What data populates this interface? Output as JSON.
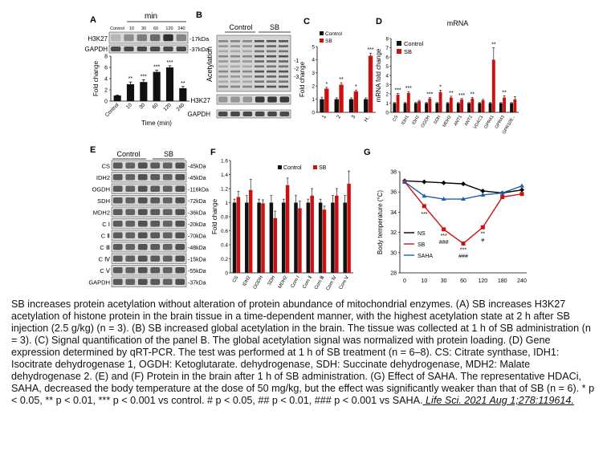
{
  "panels": {
    "A": {
      "letter": "A",
      "time_header": "min",
      "lane_labels": [
        "Control",
        "10",
        "30",
        "60",
        "120",
        "240"
      ],
      "blot_labels": [
        "H3K27",
        "GAPDH"
      ],
      "kda": [
        "17kDa",
        "37kDa"
      ],
      "chart_data": {
        "type": "bar",
        "categories": [
          "Control",
          "10",
          "30",
          "60",
          "120",
          "240"
        ],
        "values": [
          1,
          3.0,
          3.4,
          5.2,
          6.0,
          2.3
        ],
        "errors": [
          0.1,
          0.4,
          0.4,
          0.3,
          0.3,
          0.3
        ],
        "sig": [
          "",
          "**",
          "***",
          "***",
          "***",
          "**"
        ],
        "ylabel": "Fold change",
        "xlabel": "Time (min)",
        "ylim": [
          0,
          8
        ],
        "yticks": [
          "0",
          "2",
          "4",
          "6",
          "8"
        ]
      }
    },
    "B": {
      "letter": "B",
      "groups": [
        "Control",
        "SB"
      ],
      "ylabel": "Acetylation",
      "band_labels": [
        "1",
        "2",
        "3"
      ],
      "blot_labels": [
        "H3K27",
        "GAPDH"
      ]
    },
    "C": {
      "letter": "C",
      "chart_data": {
        "type": "bar",
        "categories": [
          "1",
          "2",
          "3",
          "H.."
        ],
        "series": [
          {
            "name": "Control",
            "values": [
              1,
              1,
              1,
              1
            ],
            "errors": [
              0.15,
              0.1,
              0.1,
              0.1
            ]
          },
          {
            "name": "SB",
            "values": [
              1.8,
              2.1,
              1.6,
              4.3
            ],
            "errors": [
              0.1,
              0.15,
              0.1,
              0.2
            ]
          }
        ],
        "sig": [
          "*",
          "**",
          "*",
          "***"
        ],
        "ylabel": "Fold change",
        "ylim": [
          0,
          5
        ],
        "yticks": [
          "0",
          "1",
          "2",
          "3",
          "4",
          "5"
        ]
      }
    },
    "D": {
      "letter": "D",
      "chart_data": {
        "type": "bar",
        "title": "mRNA",
        "categories": [
          "CS",
          "IDH1",
          "IDH2",
          "OGDH",
          "SDH",
          "MDH2",
          "ANT1",
          "ANT2",
          "VDAC1",
          "GPR41",
          "GPR43",
          "GPR109..."
        ],
        "series": [
          {
            "name": "Control",
            "values": [
              1,
              1,
              1,
              1,
              1,
              1,
              1,
              1,
              1,
              1,
              1,
              1
            ]
          },
          {
            "name": "SB",
            "values": [
              1.9,
              2.1,
              1.2,
              1.5,
              2.2,
              1.6,
              1.4,
              1.5,
              1.3,
              5.7,
              1.6,
              1.4
            ]
          }
        ],
        "errors": [
          0.15,
          0.15,
          0.1,
          0.1,
          0.2,
          0.15,
          0.1,
          0.1,
          0.1,
          1.3,
          0.2,
          0.3
        ],
        "sig": [
          "***",
          "***",
          "",
          "***",
          "*",
          "**",
          "***",
          "**",
          "",
          "**",
          "**",
          ""
        ],
        "ylabel": "mRNA fold change",
        "ylim": [
          0,
          8
        ],
        "yticks": [
          "0",
          "1",
          "2",
          "3",
          "4",
          "5",
          "6",
          "7",
          "8"
        ]
      }
    },
    "E": {
      "letter": "E",
      "groups": [
        "Control",
        "SB"
      ],
      "rows": [
        {
          "label": "CS",
          "kda": "45kDa"
        },
        {
          "label": "IDH2",
          "kda": "45kDa"
        },
        {
          "label": "OGDH",
          "kda": "116kDa"
        },
        {
          "label": "SDH",
          "kda": "72kDa"
        },
        {
          "label": "MDH2",
          "kda": "36kDa"
        },
        {
          "label": "C Ⅰ",
          "kda": "20kDa"
        },
        {
          "label": "C Ⅱ",
          "kda": "70kDa"
        },
        {
          "label": "C Ⅲ",
          "kda": "48kDa"
        },
        {
          "label": "C Ⅳ",
          "kda": "15kDa"
        },
        {
          "label": "C Ⅴ",
          "kda": "55kDa"
        },
        {
          "label": "GAPDH",
          "kda": "37kDa"
        }
      ]
    },
    "F": {
      "letter": "F",
      "chart_data": {
        "type": "bar",
        "categories": [
          "CS",
          "IDH2",
          "OGDH",
          "SDH",
          "MDH2",
          "Com Ⅰ",
          "Com Ⅱ",
          "Com Ⅲ",
          "Com Ⅳ",
          "Com Ⅴ"
        ],
        "series": [
          {
            "name": "Control",
            "values": [
              1,
              1,
              1,
              1,
              1,
              1,
              1,
              1,
              1,
              1
            ],
            "errors": [
              0.05,
              0.1,
              0.05,
              0.1,
              0.05,
              0.1,
              0.05,
              0.05,
              0.1,
              0.1
            ]
          },
          {
            "name": "SB",
            "values": [
              1.08,
              1.18,
              0.99,
              0.78,
              1.25,
              0.92,
              1.1,
              0.9,
              1.1,
              1.27
            ],
            "errors": [
              0.08,
              0.15,
              0.05,
              0.1,
              0.1,
              0.1,
              0.1,
              0.05,
              0.1,
              0.18
            ]
          }
        ],
        "ylabel": "Fold change",
        "ylim": [
          0,
          1.6
        ],
        "yticks": [
          "0",
          "0.2",
          "0.4",
          "0.6",
          "0.8",
          "1",
          "1.2",
          "1.4",
          "1.6"
        ]
      }
    },
    "G": {
      "letter": "G",
      "chart_data": {
        "type": "line",
        "x": [
          0,
          10,
          30,
          60,
          120,
          180,
          240
        ],
        "series": [
          {
            "name": "NS",
            "color": "#000000",
            "values": [
              37.1,
              37.0,
              36.9,
              36.8,
              36.1,
              35.9,
              36.2
            ]
          },
          {
            "name": "SB",
            "color": "#cc1111",
            "values": [
              37.0,
              34.6,
              32.3,
              30.9,
              32.5,
              35.5,
              35.8
            ]
          },
          {
            "name": "SAHA",
            "color": "#1f5fb0",
            "values": [
              37.0,
              35.6,
              35.3,
              35.3,
              35.7,
              35.9,
              36.6
            ]
          }
        ],
        "ylabel": "Body temperature (°C)",
        "ylim": [
          28,
          38
        ],
        "yticks": [
          "28",
          "30",
          "32",
          "34",
          "36",
          "38"
        ],
        "xticks": [
          "0",
          "10",
          "30",
          "60",
          "120",
          "180",
          "240"
        ],
        "sig_upper": [
          "",
          "***",
          "***",
          "***",
          "**",
          "",
          ""
        ],
        "sig_lower": [
          "",
          "",
          "###",
          "###",
          "#",
          "",
          ""
        ]
      }
    }
  },
  "caption": {
    "text": "SB increases protein acetylation without alteration of protein abundance of mitochondrial enzymes. (A) SB increases H3K27 acetylation of histone protein in the brain tissue in a time-dependent manner, with the highest acetylation state at 2 h after SB injection (2.5 g/kg) (n = 3). (B) SB increased global acetylation in the brain. The tissue was collected at 1 h of SB administration (n = 3). (C) Signal quantification of the panel B. The global acetylation signal was normalized with protein loading. (D) Gene expression determined by qRT-PCR. The test was performed at 1 h of SB treatment (n = 6–8). CS: Citrate synthase, IDH1: Isocitrate dehydrogenase 1, OGDH: Ketoglutarate. dehydrogenase, SDH: Succinate dehydrogenase, MDH2: Malate dehydrogenase 2. (E) and (F) Protein in the brain after 1 h of SB administration. (G) Effect of SAHA. The representative HDACi, SAHA, decreased the body temperature at the dose of 50 mg/kg, but the effect was significantly weaker than that of SB (n = 6). * p < 0.05, ** p < 0.01, *** p < 0.001 vs control. # p < 0.05, ## p < 0.01, ### p < 0.001 vs SAHA.",
    "citation": " Life Sci. 2021 Aug 1;278:119614."
  },
  "colors": {
    "control": "#111111",
    "sb": "#cc1111",
    "saha": "#1f5fb0"
  }
}
